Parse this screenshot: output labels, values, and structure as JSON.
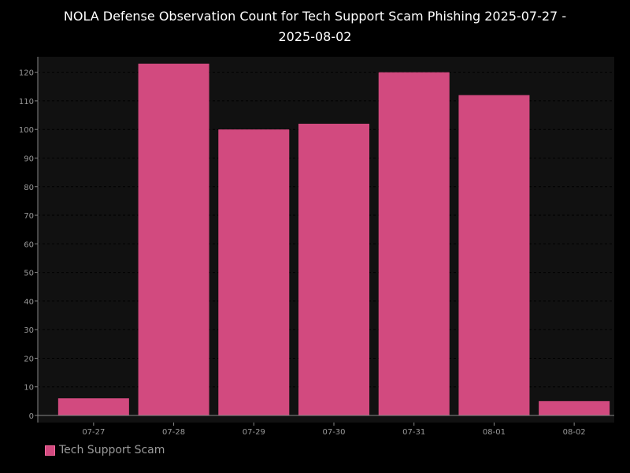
{
  "chart_data": {
    "type": "bar",
    "title_line1": "NOLA Defense Observation Count for Tech Support Scam Phishing 2025-07-27 -",
    "title_line2": "2025-08-02",
    "categories": [
      "07-27",
      "07-28",
      "07-29",
      "07-30",
      "07-31",
      "08-01",
      "08-02"
    ],
    "series": [
      {
        "name": "Tech Support Scam",
        "values": [
          6,
          123,
          100,
          102,
          120,
          112,
          5
        ],
        "color": "#d24a7f"
      }
    ],
    "yticks": [
      0,
      10,
      20,
      30,
      40,
      50,
      60,
      70,
      80,
      90,
      100,
      110,
      120
    ],
    "ylim": [
      0,
      125
    ],
    "grid": true,
    "legend_position": "bottom-left",
    "colors": {
      "background": "#000000",
      "plot_background": "#111111",
      "grid": "#000000",
      "axis": "#888888",
      "tick_text": "#999999",
      "title_text": "#ffffff"
    }
  }
}
